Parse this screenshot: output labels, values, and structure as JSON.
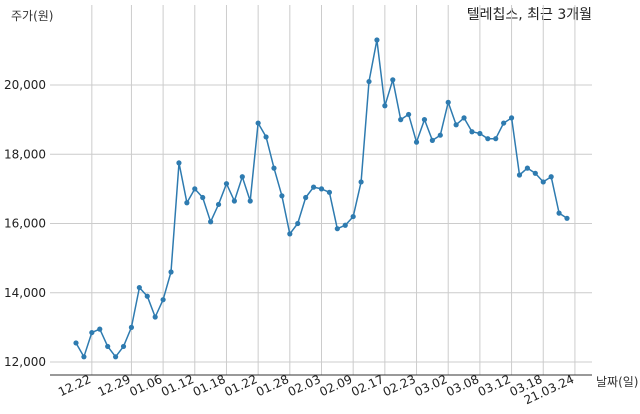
{
  "chart_data": {
    "type": "line",
    "title": "텔레칩스, 최근 3개월",
    "ylabel": "주가(원)",
    "xlabel": "날짜(일)",
    "ylim": [
      11800,
      22000
    ],
    "yticks": [
      12000,
      14000,
      16000,
      18000,
      20000
    ],
    "ytick_labels": [
      "12,000",
      "14,000",
      "16,000",
      "18,000",
      "20,000"
    ],
    "xtick_labels": [
      "12.22",
      "12.29",
      "01.06",
      "01.12",
      "01.18",
      "01.22",
      "01.28",
      "02.03",
      "02.09",
      "02.17",
      "02.23",
      "03.02",
      "03.08",
      "03.12",
      "03.18",
      "21.03.24"
    ],
    "xtick_positions": [
      2,
      7,
      11,
      15,
      19,
      23,
      27,
      31,
      35,
      39,
      43,
      47,
      51,
      55,
      59,
      63
    ],
    "grid": true,
    "color": "#2e7bb0",
    "series": [
      {
        "values": [
          12550,
          12150,
          12850,
          12950,
          12450,
          12150,
          12450,
          13000,
          14150,
          13900,
          13300,
          13800,
          14600,
          17750,
          16600,
          17000,
          16750,
          16050,
          16550,
          17150,
          16650,
          17350,
          16650,
          18900,
          18500,
          17600,
          16800,
          15700,
          16000,
          16750,
          17050,
          17000,
          16900,
          15850,
          15950,
          16200,
          17200,
          20100,
          21300,
          19400,
          20150,
          19000,
          19150,
          18350,
          19000,
          18400,
          18550,
          19500,
          18850,
          19050,
          18650,
          18600,
          18450,
          18450,
          18900,
          19050,
          17400,
          17600,
          17450,
          17200,
          17350,
          16300,
          16150
        ]
      }
    ]
  }
}
